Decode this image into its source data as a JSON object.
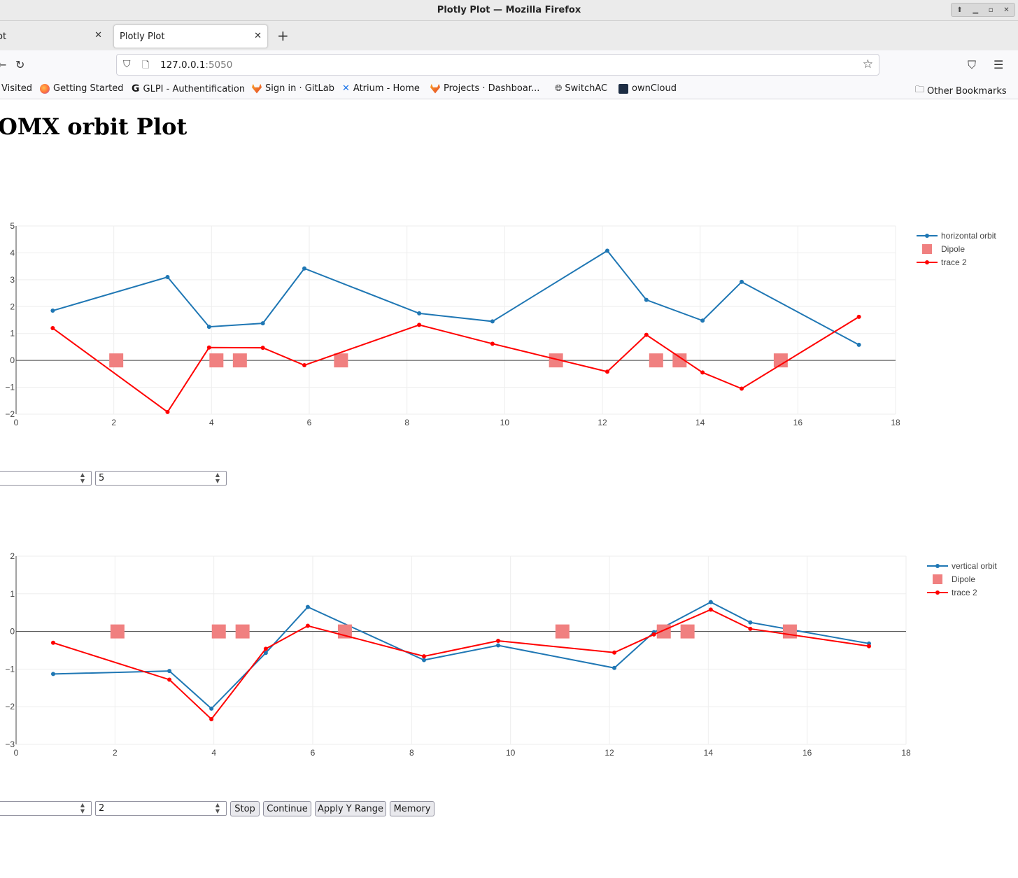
{
  "window": {
    "title": "Plotly Plot — Mozilla Firefox"
  },
  "tabs": [
    {
      "label": "ot"
    },
    {
      "label": "Plotly Plot"
    }
  ],
  "nav": {
    "url_host": "127.0.0.1",
    "url_port": ":5050"
  },
  "bookmarks": [
    {
      "label": "Visited",
      "icon": "none"
    },
    {
      "label": "Getting Started",
      "icon": "firefox-icon"
    },
    {
      "label": "GLPI - Authentification",
      "icon": "glpi-icon"
    },
    {
      "label": "Sign in · GitLab",
      "icon": "gitlab-icon"
    },
    {
      "label": "Atrium - Home",
      "icon": "atrium-icon"
    },
    {
      "label": "Projects · Dashboar...",
      "icon": "gitlab-icon"
    },
    {
      "label": "SwitchAC",
      "icon": "globe-icon"
    },
    {
      "label": "ownCloud",
      "icon": "owncloud-icon"
    },
    {
      "label": "Other Bookmarks",
      "icon": "folder-icon"
    }
  ],
  "page": {
    "title": "OMX orbit Plot"
  },
  "controls": {
    "h_min": "",
    "h_max": "5",
    "v_min": "",
    "v_max": "2",
    "stop_label": "Stop",
    "continue_label": "Continue",
    "apply_label": "Apply Y Range",
    "memory_label": "Memory"
  },
  "colors": {
    "orbit": "#1f77b4",
    "trace2": "#ff0000",
    "dipole": "#f08080"
  },
  "chart_data": [
    {
      "type": "line",
      "xlim": [
        0,
        18
      ],
      "ylim": [
        -2,
        5
      ],
      "xticks": [
        0,
        2,
        4,
        6,
        8,
        10,
        12,
        14,
        16,
        18
      ],
      "yticks": [
        -2,
        -1,
        0,
        1,
        2,
        3,
        4,
        5
      ],
      "legend_position": "top-right",
      "grid": true,
      "series": [
        {
          "name": "horizontal orbit",
          "color": "#1f77b4",
          "mode": "lines+markers",
          "x": [
            0.75,
            3.1,
            3.95,
            5.05,
            5.9,
            8.25,
            9.75,
            12.1,
            12.9,
            14.05,
            14.85,
            17.25
          ],
          "y": [
            1.85,
            3.1,
            1.25,
            1.38,
            3.42,
            1.75,
            1.45,
            4.08,
            2.25,
            1.48,
            2.92,
            0.58
          ]
        },
        {
          "name": "Dipole",
          "color": "#f08080",
          "mode": "markers",
          "x": [
            2.05,
            4.1,
            4.58,
            6.65,
            11.05,
            13.1,
            13.58,
            15.65
          ],
          "y": [
            0,
            0,
            0,
            0,
            0,
            0,
            0,
            0
          ]
        },
        {
          "name": "trace 2",
          "color": "#ff0000",
          "mode": "lines+markers",
          "x": [
            0.75,
            3.1,
            3.95,
            5.05,
            5.9,
            8.25,
            9.75,
            12.1,
            12.9,
            14.05,
            14.85,
            17.25
          ],
          "y": [
            1.2,
            -1.92,
            0.48,
            0.47,
            -0.18,
            1.32,
            0.62,
            -0.42,
            0.95,
            -0.45,
            -1.05,
            1.62
          ]
        }
      ]
    },
    {
      "type": "line",
      "xlim": [
        0,
        18
      ],
      "ylim": [
        -3,
        2
      ],
      "xticks": [
        0,
        2,
        4,
        6,
        8,
        10,
        12,
        14,
        16,
        18
      ],
      "yticks": [
        -3,
        -2,
        -1,
        0,
        1,
        2
      ],
      "legend_position": "top-right",
      "grid": true,
      "series": [
        {
          "name": "vertical orbit",
          "color": "#1f77b4",
          "mode": "lines+markers",
          "x": [
            0.75,
            3.1,
            3.95,
            5.05,
            5.9,
            8.25,
            9.75,
            12.1,
            12.9,
            14.05,
            14.85,
            17.25
          ],
          "y": [
            -1.13,
            -1.05,
            -2.05,
            -0.57,
            0.65,
            -0.76,
            -0.37,
            -0.97,
            -0.02,
            0.78,
            0.24,
            -0.32
          ]
        },
        {
          "name": "Dipole",
          "color": "#f08080",
          "mode": "markers",
          "x": [
            2.05,
            4.1,
            4.58,
            6.65,
            11.05,
            13.1,
            13.58,
            15.65
          ],
          "y": [
            0,
            0,
            0,
            0,
            0,
            0,
            0,
            0
          ]
        },
        {
          "name": "trace 2",
          "color": "#ff0000",
          "mode": "lines+markers",
          "x": [
            0.75,
            3.1,
            3.95,
            5.05,
            5.9,
            8.25,
            9.75,
            12.1,
            12.9,
            14.05,
            14.85,
            17.25
          ],
          "y": [
            -0.3,
            -1.28,
            -2.33,
            -0.46,
            0.15,
            -0.66,
            -0.25,
            -0.56,
            -0.08,
            0.58,
            0.07,
            -0.39
          ]
        }
      ]
    }
  ]
}
